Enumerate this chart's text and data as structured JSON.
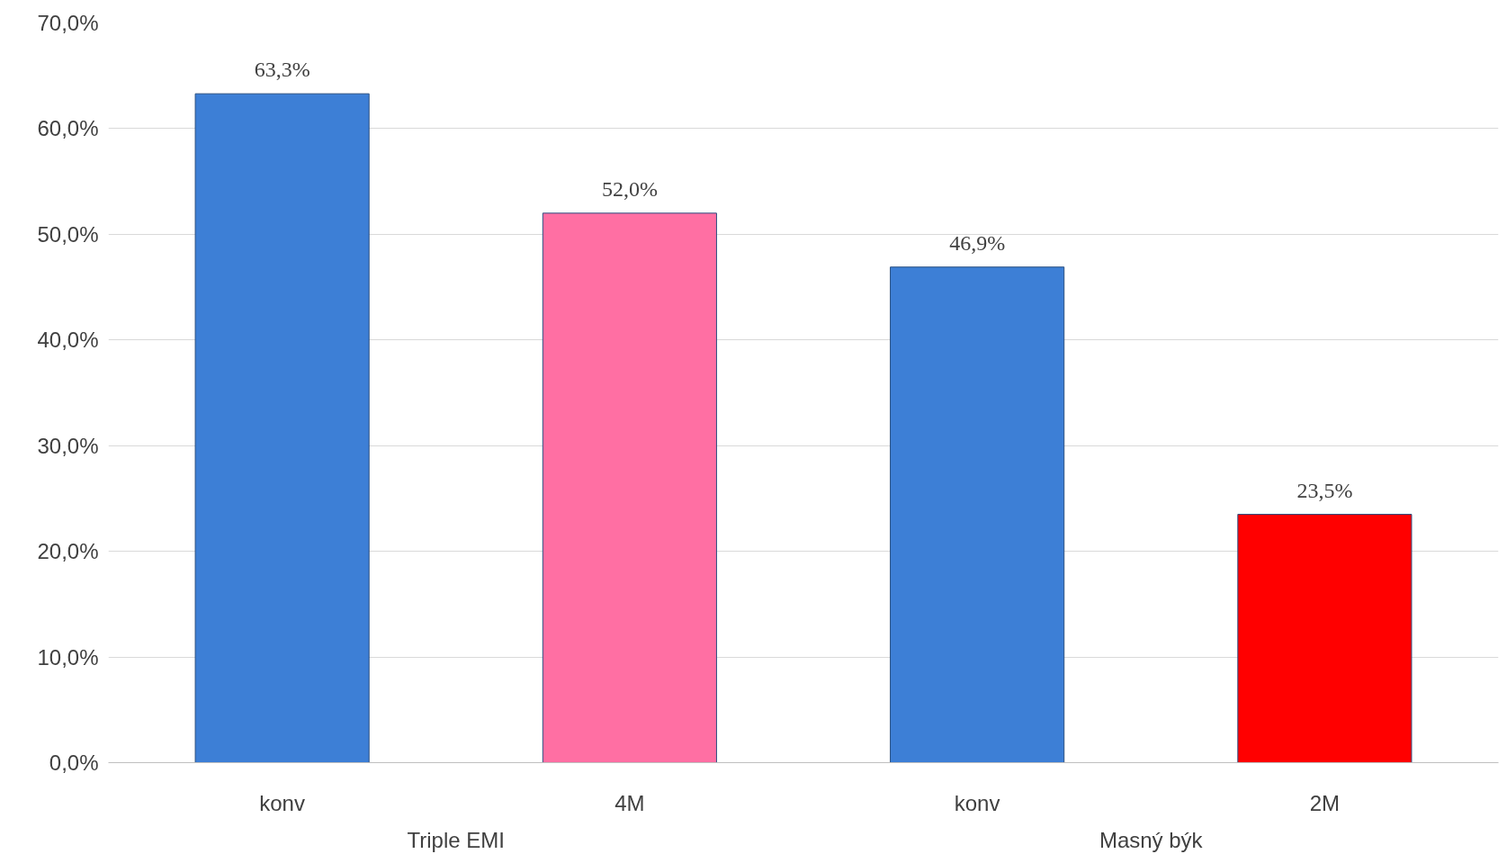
{
  "chart_data": {
    "type": "bar",
    "categories": [
      "konv",
      "4M",
      "konv",
      "2M"
    ],
    "values": [
      63.3,
      52.0,
      46.9,
      23.5
    ],
    "colors": [
      "#3d7fd6",
      "#ff6fa3",
      "#3d7fd6",
      "#ff0000"
    ],
    "value_labels": [
      "63,3%",
      "52,0%",
      "46,9%",
      "23,5%"
    ],
    "annotations": [
      "Triple EMI",
      "Masný býk"
    ],
    "ylim": [
      0,
      70
    ],
    "yticks": [
      {
        "value": 0,
        "label": "0,0%"
      },
      {
        "value": 10,
        "label": "10,0%"
      },
      {
        "value": 20,
        "label": "20,0%"
      },
      {
        "value": 30,
        "label": "30,0%"
      },
      {
        "value": 40,
        "label": "40,0%"
      },
      {
        "value": 50,
        "label": "50,0%"
      },
      {
        "value": 60,
        "label": "60,0%"
      },
      {
        "value": 70,
        "label": "70,0%"
      }
    ],
    "grid": "y"
  }
}
